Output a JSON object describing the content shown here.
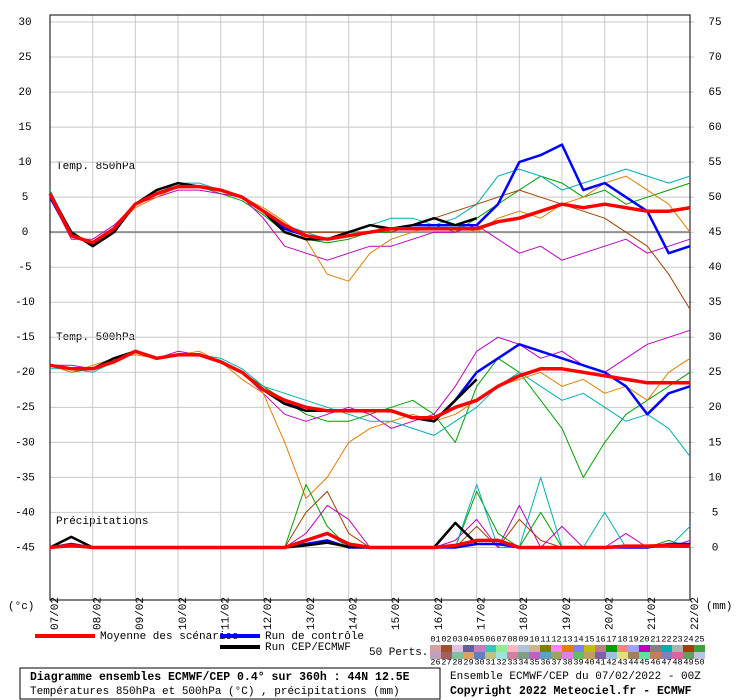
{
  "chart_data": {
    "type": "line",
    "ylabel": "(°c)",
    "y2label": "(mm)",
    "annotations": [
      "Temp. 850hPa",
      "Temp. 500hPa",
      "Précipitations"
    ],
    "xlim": [
      0,
      15
    ],
    "xticks": [
      {
        "value": 0,
        "label": "07/02"
      },
      {
        "value": 1,
        "label": "08/02"
      },
      {
        "value": 2,
        "label": "09/02"
      },
      {
        "value": 3,
        "label": "10/02"
      },
      {
        "value": 4,
        "label": "11/02"
      },
      {
        "value": 5,
        "label": "12/02"
      },
      {
        "value": 6,
        "label": "13/02"
      },
      {
        "value": 7,
        "label": "14/02"
      },
      {
        "value": 8,
        "label": "15/02"
      },
      {
        "value": 9,
        "label": "16/02"
      },
      {
        "value": 10,
        "label": "17/02"
      },
      {
        "value": 11,
        "label": "18/02"
      },
      {
        "value": 12,
        "label": "19/02"
      },
      {
        "value": 13,
        "label": "20/02"
      },
      {
        "value": 14,
        "label": "21/02"
      },
      {
        "value": 15,
        "label": "22/02"
      }
    ],
    "ylim": [
      -52.5,
      31
    ],
    "yticks": [
      30,
      25,
      20,
      15,
      10,
      5,
      0,
      -5,
      -10,
      -15,
      -20,
      -25,
      -30,
      -35,
      -40,
      -45
    ],
    "y2lim": [
      -7.5,
      76
    ],
    "y2ticks": [
      75,
      70,
      65,
      60,
      55,
      50,
      45,
      40,
      35,
      30,
      25,
      20,
      15,
      10,
      5,
      0
    ],
    "grid": true,
    "x": [
      0,
      0.5,
      1,
      1.5,
      2,
      2.5,
      3,
      3.5,
      4,
      4.5,
      5,
      5.5,
      6,
      6.5,
      7,
      7.5,
      8,
      8.5,
      9,
      9.5,
      10,
      10.5,
      11,
      11.5,
      12,
      12.5,
      13,
      13.5,
      14,
      14.5,
      15
    ],
    "perturbations": [
      {
        "color": "#00a000",
        "values": [
          5,
          0,
          -2,
          0,
          4,
          6,
          7,
          6.5,
          5.5,
          4.5,
          2.5,
          0,
          -1,
          -1.5,
          -1,
          0,
          0,
          1,
          1,
          0,
          2,
          4,
          6,
          8,
          7,
          5,
          6,
          4,
          5,
          6,
          7
        ]
      },
      {
        "color": "#c000c0",
        "values": [
          5,
          -1,
          -1,
          1,
          4,
          5,
          6,
          6,
          5.5,
          5,
          2,
          -2,
          -3,
          -4,
          -3,
          -2,
          -2,
          -1,
          0,
          0,
          1,
          -1,
          -3,
          -2,
          -4,
          -3,
          -2,
          -1,
          -3,
          -2,
          -1
        ]
      },
      {
        "color": "#00b0b0",
        "values": [
          6,
          0,
          -2,
          0,
          4,
          5.5,
          7,
          7,
          6,
          5,
          3,
          1,
          0,
          -1,
          0,
          1,
          2,
          2,
          1,
          2,
          4,
          8,
          9,
          8,
          6,
          7,
          8,
          9,
          8,
          7,
          8
        ]
      },
      {
        "color": "#e08000",
        "values": [
          5,
          -0.5,
          -1.5,
          0.5,
          3.5,
          5,
          6.5,
          6.5,
          6,
          5,
          3.5,
          1.5,
          -1,
          -6,
          -7,
          -3,
          -1,
          0,
          1,
          1,
          0,
          2,
          3,
          2,
          4,
          5,
          7,
          8,
          6,
          4,
          0
        ]
      },
      {
        "color": "#a04000",
        "values": [
          5,
          0,
          -2,
          0,
          4,
          5.5,
          6.5,
          6.5,
          6,
          5,
          3,
          0.5,
          0,
          0,
          0,
          1,
          0,
          1,
          2,
          3,
          4,
          5,
          6,
          5,
          4,
          3,
          2,
          0,
          -2,
          -6,
          -11
        ]
      },
      {
        "color": "#00a000",
        "values": [
          -19,
          -20,
          -19.5,
          -18,
          -17,
          -18,
          -17.5,
          -17.5,
          -18.5,
          -20,
          -22,
          -24,
          -26,
          -27,
          -27,
          -26,
          -25,
          -24,
          -26,
          -30,
          -22,
          -18,
          -20,
          -24,
          -28,
          -35,
          -30,
          -26,
          -24,
          -22,
          -20
        ]
      },
      {
        "color": "#c000c0",
        "values": [
          -19,
          -19,
          -19.5,
          -18.5,
          -17,
          -18,
          -17,
          -17.5,
          -18.5,
          -20,
          -23,
          -26,
          -27,
          -26,
          -25,
          -26,
          -28,
          -27,
          -26,
          -22,
          -17,
          -15,
          -16,
          -18,
          -17,
          -19,
          -20,
          -18,
          -16,
          -15,
          -14
        ]
      },
      {
        "color": "#00b0b0",
        "values": [
          -19.5,
          -19.5,
          -20,
          -18.5,
          -17,
          -18,
          -17.5,
          -17.5,
          -18,
          -19.5,
          -22,
          -23,
          -24,
          -25,
          -26,
          -27,
          -27,
          -28,
          -29,
          -27,
          -25,
          -22,
          -20,
          -22,
          -24,
          -23,
          -25,
          -27,
          -26,
          -28,
          -32
        ]
      },
      {
        "color": "#e08000",
        "values": [
          -19,
          -20,
          -19,
          -18,
          -17.5,
          -18,
          -17.5,
          -17,
          -18.5,
          -21,
          -23,
          -30,
          -38,
          -35,
          -30,
          -28,
          -27,
          -26,
          -27,
          -26,
          -24,
          -22,
          -21,
          -20,
          -22,
          -21,
          -23,
          -22,
          -24,
          -20,
          -18
        ]
      },
      {
        "color": "#a04000",
        "axis": "y2",
        "values": [
          0,
          0,
          0,
          0,
          0,
          0,
          0,
          0,
          0,
          0,
          0,
          0,
          5,
          8,
          2,
          0,
          0,
          0,
          0,
          0,
          3,
          0,
          4,
          1,
          0,
          0,
          0,
          0,
          0,
          0,
          0
        ]
      },
      {
        "color": "#00a000",
        "axis": "y2",
        "values": [
          0,
          0,
          0,
          0,
          0,
          0,
          0,
          0,
          0,
          0,
          0,
          0,
          9,
          3,
          0,
          0,
          0,
          0,
          0,
          0,
          8,
          2,
          0,
          5,
          0,
          0,
          0,
          0,
          0,
          1,
          0
        ]
      },
      {
        "color": "#c000c0",
        "axis": "y2",
        "values": [
          0,
          0,
          0,
          0,
          0,
          0,
          0,
          0,
          0,
          0,
          0,
          0,
          2,
          6,
          4,
          0,
          0,
          0,
          0,
          1,
          4,
          0,
          6,
          0,
          3,
          0,
          0,
          2,
          0,
          0,
          1
        ]
      },
      {
        "color": "#00b0b0",
        "axis": "y2",
        "values": [
          0,
          0,
          0,
          0,
          0,
          0,
          0,
          0,
          0,
          0,
          0,
          0,
          1,
          2,
          0,
          0,
          0,
          0,
          0,
          0,
          9,
          0,
          0,
          10,
          0,
          0,
          5,
          0,
          0,
          0,
          3
        ]
      }
    ],
    "main_series": [
      {
        "color": "#0000ff",
        "values": [
          5,
          -0.5,
          -1.5,
          0.5,
          4,
          5.5,
          6.5,
          6.5,
          6,
          5,
          3,
          0.5,
          -0.5,
          -1,
          -0.5,
          0,
          0.5,
          1,
          1,
          1,
          1,
          4,
          10,
          11,
          12.5,
          6,
          7,
          5,
          3,
          -3,
          -2
        ]
      },
      {
        "color": "#000000",
        "values": [
          5.5,
          0,
          -2,
          0,
          4,
          6,
          7,
          6.5,
          6,
          5,
          3,
          0,
          -1,
          -1,
          0,
          1,
          0.5,
          1,
          2,
          1,
          2,
          null,
          null,
          null,
          null,
          null,
          null,
          null,
          null,
          null,
          null
        ]
      },
      {
        "color": "#ff0000",
        "values": [
          5.5,
          -0.5,
          -1.5,
          0.5,
          4,
          5.5,
          6.5,
          6.5,
          6,
          5,
          3,
          1,
          -0.5,
          -1,
          -0.5,
          0,
          0.5,
          0.5,
          0.5,
          0.5,
          0.5,
          1.5,
          2,
          3,
          4,
          3.5,
          4,
          3.5,
          3,
          3,
          3.5
        ]
      },
      {
        "color": "#0000ff",
        "values": [
          -19,
          -19.5,
          -19.5,
          -18.5,
          -17,
          -18,
          -17.5,
          -17.5,
          -18.5,
          -20,
          -22.5,
          -24.5,
          -25,
          -25.5,
          -25.5,
          -25.5,
          -25.5,
          -26.5,
          -27,
          -24,
          -20,
          -18,
          -16,
          -17,
          -18,
          -19,
          -20,
          -22,
          -26,
          -23,
          -22
        ]
      },
      {
        "color": "#000000",
        "values": [
          -19,
          -19.5,
          -19.5,
          -18,
          -17,
          -18,
          -17.5,
          -17.5,
          -18.5,
          -20,
          -22.5,
          -24.5,
          -25.5,
          -25.5,
          -25.5,
          -25.5,
          -25.5,
          -26.5,
          -27,
          -24,
          -21,
          null,
          null,
          null,
          null,
          null,
          null,
          null,
          null,
          null,
          null
        ]
      },
      {
        "color": "#ff0000",
        "values": [
          -19,
          -19.5,
          -19.5,
          -18.5,
          -17,
          -18,
          -17.5,
          -17.5,
          -18.5,
          -20,
          -22.5,
          -24,
          -25,
          -25.5,
          -25.5,
          -25.5,
          -25.5,
          -26.5,
          -26.5,
          -25,
          -24,
          -22,
          -20.5,
          -19.5,
          -19.5,
          -20,
          -20.5,
          -21,
          -21.5,
          -21.5,
          -21.5
        ]
      },
      {
        "color": "#0000ff",
        "axis": "y2",
        "values": [
          0,
          0.5,
          0,
          0,
          0,
          0,
          0,
          0,
          0,
          0,
          0,
          0,
          0.5,
          1,
          0,
          0,
          0,
          0,
          0,
          0,
          0.5,
          0.5,
          0,
          0,
          0,
          0,
          0,
          0,
          0,
          0.5,
          0.5
        ]
      },
      {
        "color": "#000000",
        "axis": "y2",
        "values": [
          0,
          1.5,
          0,
          0,
          0,
          0,
          0,
          0,
          0,
          0,
          0,
          0,
          0.3,
          0.7,
          0.1,
          0,
          0,
          0,
          0,
          3.5,
          0.5,
          null,
          null,
          null,
          null,
          null,
          null,
          null,
          null,
          null,
          null
        ]
      },
      {
        "color": "#ff0000",
        "axis": "y2",
        "values": [
          0,
          0.3,
          0,
          0,
          0,
          0,
          0,
          0,
          0,
          0,
          0,
          0,
          1,
          2,
          0.5,
          0,
          0,
          0,
          0,
          0.3,
          1,
          1,
          0,
          0,
          0,
          0,
          0,
          0.2,
          0.2,
          0.3,
          0.2
        ]
      }
    ],
    "legend": [
      {
        "name": "Moyenne des scénarios",
        "color": "#ff0000"
      },
      {
        "name": "Run de contrôle",
        "color": "#0000ff"
      },
      {
        "name": "Run CEP/ECMWF",
        "color": "#000000"
      }
    ],
    "perts_label": "50 Perts.",
    "pert_labels": [
      "01",
      "02",
      "03",
      "04",
      "05",
      "06",
      "07",
      "08",
      "09",
      "10",
      "11",
      "12",
      "13",
      "14",
      "15",
      "16",
      "17",
      "18",
      "19",
      "20",
      "21",
      "22",
      "23",
      "24",
      "25",
      "26",
      "27",
      "28",
      "29",
      "30",
      "31",
      "32",
      "33",
      "34",
      "35",
      "36",
      "37",
      "38",
      "39",
      "40",
      "41",
      "42",
      "43",
      "44",
      "45",
      "46",
      "47",
      "48",
      "49",
      "50"
    ],
    "pert_colors": [
      "#d4a0a0",
      "#a0522d",
      "#e0c0e0",
      "#6060a0",
      "#c080c0",
      "#40c0c0",
      "#90ee90",
      "#ffb6c1",
      "#b0c4de",
      "#d2b48c",
      "#808000",
      "#ff80ff",
      "#e08000",
      "#8080ff",
      "#c0c000",
      "#c08080",
      "#00a000",
      "#ff8080",
      "#a0a0ff",
      "#c000c0",
      "#808080",
      "#00b0b0",
      "#b0b0b0",
      "#a04000",
      "#40a040",
      "#c0a0c0",
      "#a06060",
      "#80c0a0",
      "#e0a060",
      "#6080c0",
      "#c0c080",
      "#a0e0e0",
      "#d080a0",
      "#80a080",
      "#c060c0",
      "#60a0c0",
      "#a0a060",
      "#e080e0",
      "#60c060",
      "#c0a060",
      "#8060a0",
      "#a0c0e0",
      "#e0e080",
      "#a08060",
      "#60e0a0",
      "#c08060",
      "#8080c0",
      "#e060a0",
      "#60a060",
      "#c0c0e0"
    ],
    "footer": {
      "title": "Diagramme ensembles ECMWF/CEP 0.4° sur 360h : 44N 12.5E",
      "subtitle": "Températures 850hPa et 500hPa (°C) , précipitations (mm)",
      "run": "Ensemble ECMWF/CEP du 07/02/2022 - 00Z",
      "copyright": "Copyright 2022 Meteociel.fr - ECMWF"
    }
  }
}
